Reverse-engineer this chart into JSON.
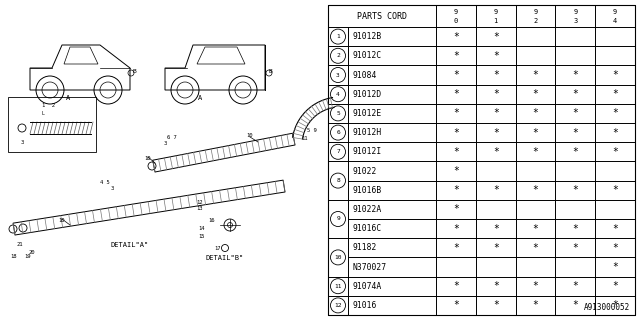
{
  "diagram_ref": "A913000052",
  "bg_color": "#ffffff",
  "line_color": "#000000",
  "table": {
    "rows": [
      {
        "ref": "1",
        "part": "91012B",
        "vals": [
          "*",
          "*",
          "",
          "",
          ""
        ]
      },
      {
        "ref": "2",
        "part": "91012C",
        "vals": [
          "*",
          "*",
          "",
          "",
          ""
        ]
      },
      {
        "ref": "3",
        "part": "91084",
        "vals": [
          "*",
          "*",
          "*",
          "*",
          "*"
        ]
      },
      {
        "ref": "4",
        "part": "91012D",
        "vals": [
          "*",
          "*",
          "*",
          "*",
          "*"
        ]
      },
      {
        "ref": "5",
        "part": "91012E",
        "vals": [
          "*",
          "*",
          "*",
          "*",
          "*"
        ]
      },
      {
        "ref": "6",
        "part": "91012H",
        "vals": [
          "*",
          "*",
          "*",
          "*",
          "*"
        ]
      },
      {
        "ref": "7",
        "part": "91012I",
        "vals": [
          "*",
          "*",
          "*",
          "*",
          "*"
        ]
      },
      {
        "ref": "8a",
        "part": "91022",
        "vals": [
          "*",
          "",
          "",
          "",
          ""
        ]
      },
      {
        "ref": "8b",
        "part": "91016B",
        "vals": [
          "*",
          "*",
          "*",
          "*",
          "*"
        ]
      },
      {
        "ref": "9a",
        "part": "91022A",
        "vals": [
          "*",
          "",
          "",
          "",
          ""
        ]
      },
      {
        "ref": "9b",
        "part": "91016C",
        "vals": [
          "*",
          "*",
          "*",
          "*",
          "*"
        ]
      },
      {
        "ref": "10a",
        "part": "91182",
        "vals": [
          "*",
          "*",
          "*",
          "*",
          "*"
        ]
      },
      {
        "ref": "10b",
        "part": "N370027",
        "vals": [
          "",
          "",
          "",
          "",
          "*"
        ]
      },
      {
        "ref": "11",
        "part": "91074A",
        "vals": [
          "*",
          "*",
          "*",
          "*",
          "*"
        ]
      },
      {
        "ref": "12",
        "part": "91016",
        "vals": [
          "*",
          "*",
          "*",
          "*",
          "*"
        ]
      }
    ]
  }
}
